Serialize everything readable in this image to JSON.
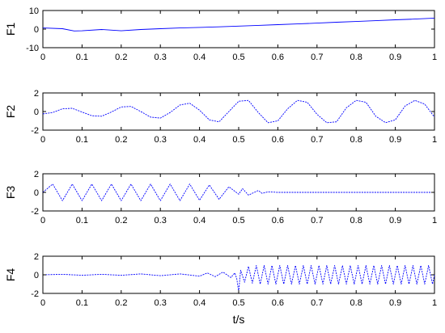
{
  "chart_data": [
    {
      "type": "line",
      "ylabel": "F1",
      "xlim": [
        0,
        1
      ],
      "ylim": [
        -10,
        10
      ],
      "yticks": [
        -10,
        0,
        10
      ],
      "xticks": [
        0,
        0.1,
        0.2,
        0.3,
        0.4,
        0.5,
        0.6,
        0.7,
        0.8,
        0.9,
        1
      ],
      "xtick_labels": [
        "0",
        "0.1",
        "0.2",
        "0.3",
        "0.4",
        "0.5",
        "0.6",
        "0.7",
        "0.8",
        "0.9",
        "1"
      ],
      "series": [
        {
          "color": "#0000ff",
          "x": [
            0,
            0.05,
            0.08,
            0.1,
            0.15,
            0.2,
            0.25,
            0.3,
            0.35,
            0.4,
            0.45,
            0.5,
            0.55,
            0.6,
            0.65,
            0.7,
            0.75,
            0.8,
            0.85,
            0.9,
            0.95,
            1
          ],
          "y": [
            0.6,
            0.2,
            -1.0,
            -0.9,
            -0.2,
            -0.9,
            -0.2,
            0.2,
            0.6,
            0.9,
            1.2,
            1.6,
            2.0,
            2.4,
            2.8,
            3.2,
            3.7,
            4.1,
            4.5,
            5.0,
            5.4,
            5.9
          ]
        }
      ]
    },
    {
      "type": "line",
      "ylabel": "F2",
      "xlim": [
        0,
        1
      ],
      "ylim": [
        -2,
        2
      ],
      "yticks": [
        -2,
        0,
        2
      ],
      "xticks": [
        0,
        0.1,
        0.2,
        0.3,
        0.4,
        0.5,
        0.6,
        0.7,
        0.8,
        0.9,
        1
      ],
      "xtick_labels": [
        "0",
        "0.1",
        "0.2",
        "0.3",
        "0.4",
        "0.5",
        "0.6",
        "0.7",
        "0.8",
        "0.9",
        "1"
      ],
      "series": [
        {
          "color": "#0000ff",
          "x": [
            0,
            0.025,
            0.05,
            0.075,
            0.1,
            0.125,
            0.15,
            0.175,
            0.2,
            0.225,
            0.25,
            0.275,
            0.3,
            0.325,
            0.35,
            0.375,
            0.4,
            0.425,
            0.45,
            0.475,
            0.5,
            0.525,
            0.55,
            0.575,
            0.6,
            0.625,
            0.65,
            0.675,
            0.7,
            0.725,
            0.75,
            0.775,
            0.8,
            0.825,
            0.85,
            0.875,
            0.9,
            0.925,
            0.95,
            0.975,
            1
          ],
          "y": [
            -0.25,
            -0.1,
            0.3,
            0.35,
            -0.05,
            -0.45,
            -0.5,
            -0.05,
            0.5,
            0.55,
            0.0,
            -0.6,
            -0.7,
            -0.1,
            0.7,
            0.9,
            0.15,
            -0.9,
            -1.1,
            0.0,
            1.1,
            1.2,
            -0.1,
            -1.2,
            -1.0,
            0.3,
            1.2,
            1.0,
            -0.3,
            -1.2,
            -1.1,
            0.4,
            1.2,
            1.0,
            -0.5,
            -1.2,
            -0.9,
            0.6,
            1.2,
            0.8,
            -0.6
          ]
        }
      ]
    },
    {
      "type": "line",
      "ylabel": "F3",
      "xlim": [
        0,
        1
      ],
      "ylim": [
        -2,
        2
      ],
      "yticks": [
        -2,
        0,
        2
      ],
      "xticks": [
        0,
        0.1,
        0.2,
        0.3,
        0.4,
        0.5,
        0.6,
        0.7,
        0.8,
        0.9,
        1
      ],
      "xtick_labels": [
        "0",
        "0.1",
        "0.2",
        "0.3",
        "0.4",
        "0.5",
        "0.6",
        "0.7",
        "0.8",
        "0.9",
        "1"
      ],
      "series": [
        {
          "color": "#0000ff",
          "x": [
            0,
            0.025,
            0.05,
            0.075,
            0.1,
            0.125,
            0.15,
            0.175,
            0.2,
            0.225,
            0.25,
            0.275,
            0.3,
            0.325,
            0.35,
            0.375,
            0.4,
            0.425,
            0.45,
            0.475,
            0.5,
            0.51,
            0.525,
            0.55,
            0.56,
            0.575,
            0.6,
            0.65,
            0.7,
            0.75,
            0.8,
            0.85,
            0.9,
            0.95,
            1
          ],
          "y": [
            0,
            0.9,
            -0.9,
            0.9,
            -0.9,
            0.9,
            -0.9,
            0.9,
            -0.9,
            0.9,
            -0.9,
            0.9,
            -0.9,
            0.9,
            -0.9,
            0.9,
            -0.85,
            0.8,
            -0.75,
            0.6,
            -0.2,
            0.4,
            -0.3,
            0.2,
            -0.1,
            0.05,
            0,
            0,
            0,
            0,
            0,
            0,
            0,
            0,
            0
          ]
        }
      ]
    },
    {
      "type": "line",
      "ylabel": "F4",
      "xlim": [
        0,
        1
      ],
      "ylim": [
        -2,
        2
      ],
      "yticks": [
        -2,
        0,
        2
      ],
      "xticks": [
        0,
        0.1,
        0.2,
        0.3,
        0.4,
        0.5,
        0.6,
        0.7,
        0.8,
        0.9,
        1
      ],
      "xtick_labels": [
        "0",
        "0.1",
        "0.2",
        "0.3",
        "0.4",
        "0.5",
        "0.6",
        "0.7",
        "0.8",
        "0.9",
        "1"
      ],
      "xlabel": "t/s",
      "series": [
        {
          "color": "#0000ff",
          "x": [
            0,
            0.05,
            0.1,
            0.15,
            0.2,
            0.25,
            0.3,
            0.35,
            0.4,
            0.42,
            0.44,
            0.46,
            0.48,
            0.49,
            0.495,
            0.5,
            0.505,
            0.515,
            0.525,
            0.535,
            0.545,
            0.555,
            0.565,
            0.575,
            0.585,
            0.595,
            0.605,
            0.615,
            0.625,
            0.635,
            0.645,
            0.655,
            0.665,
            0.675,
            0.685,
            0.695,
            0.705,
            0.715,
            0.725,
            0.735,
            0.745,
            0.755,
            0.765,
            0.775,
            0.785,
            0.795,
            0.805,
            0.815,
            0.825,
            0.835,
            0.845,
            0.855,
            0.865,
            0.875,
            0.885,
            0.895,
            0.905,
            0.915,
            0.925,
            0.935,
            0.945,
            0.955,
            0.965,
            0.975,
            0.985,
            0.995,
            1
          ],
          "y": [
            0,
            0.05,
            -0.05,
            0.05,
            -0.05,
            0.1,
            -0.1,
            0.1,
            -0.15,
            0.2,
            -0.2,
            0.3,
            -0.3,
            0.2,
            -0.4,
            -1.8,
            0.5,
            -0.8,
            0.9,
            -0.9,
            1.0,
            -1.0,
            1.0,
            -1.0,
            1.0,
            -1.0,
            1.0,
            -1.0,
            1.0,
            -1.0,
            1.0,
            -1.0,
            1.0,
            -1.0,
            1.0,
            -1.0,
            1.0,
            -1.0,
            1.0,
            -1.0,
            1.0,
            -1.0,
            1.0,
            -1.0,
            1.0,
            -1.0,
            1.0,
            -1.0,
            1.0,
            -1.0,
            1.0,
            -1.0,
            1.0,
            -1.0,
            1.0,
            -1.0,
            1.0,
            -1.0,
            1.0,
            -1.0,
            1.0,
            -1.0,
            1.0,
            -1.0,
            1.0,
            -1.0,
            0
          ]
        }
      ]
    }
  ]
}
